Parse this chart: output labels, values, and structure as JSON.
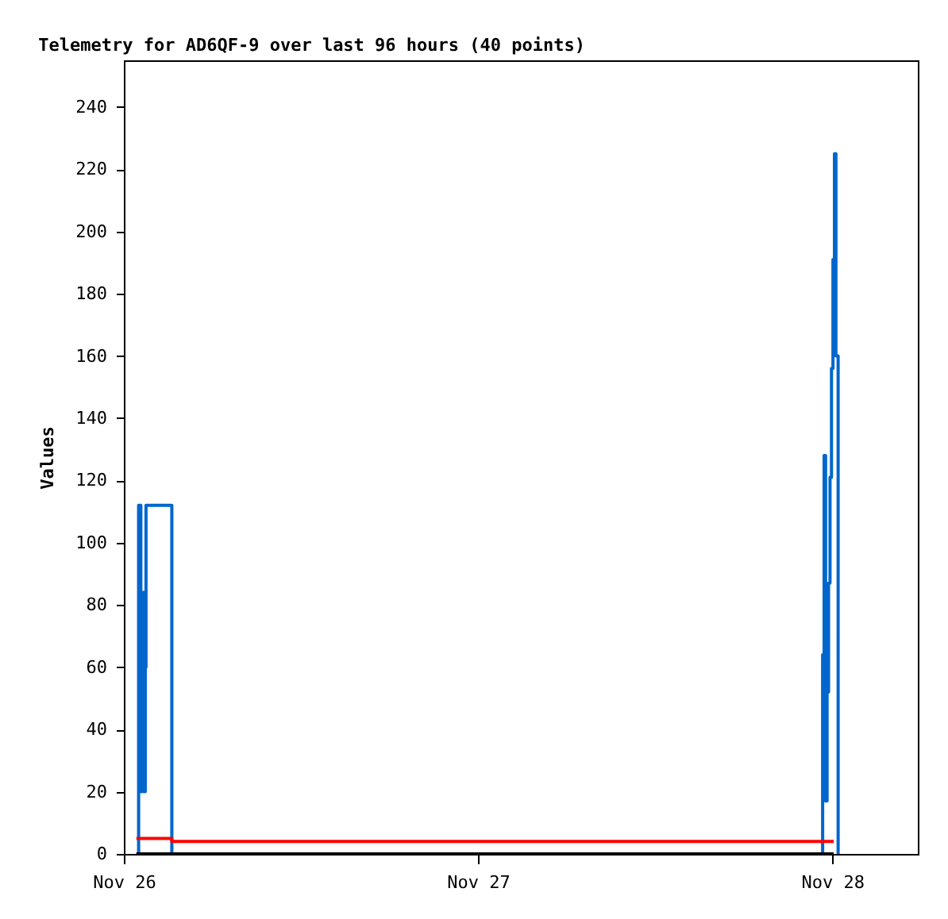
{
  "chart_data": {
    "type": "step",
    "title": "Telemetry for AD6QF-9 over last 96 hours (40 points)",
    "ylabel": "Values",
    "xlim": [
      "--11-26T00:00",
      "--11-28T05:48"
    ],
    "xticks": [
      {
        "value": "--11-26",
        "label": "Nov 26"
      },
      {
        "value": "--11-27",
        "label": "Nov 27"
      },
      {
        "value": "--11-28",
        "label": "Nov 28"
      }
    ],
    "ylim": [
      0,
      255
    ],
    "yticks": [
      0,
      20,
      40,
      60,
      80,
      100,
      120,
      140,
      160,
      180,
      200,
      220,
      240
    ],
    "grid": false,
    "marker": "none",
    "line_style": "solid",
    "series": [
      {
        "color": "#0066cc",
        "x": [
          "--11-26T00:51",
          "--11-26T01:00",
          "--11-26T01:09",
          "--11-26T01:15",
          "--11-26T01:21",
          "--11-26T01:27",
          "--11-26T01:30",
          "--11-26T03:15",
          "--11-27T23:18",
          "--11-27T23:21",
          "--11-27T23:27",
          "--11-27T23:33",
          "--11-27T23:39",
          "--11-27T23:45",
          "--11-27T23:51",
          "--11-27T23:57",
          "--11-28T00:03",
          "--11-28T00:09",
          "--11-28T00:15",
          "--11-28T00:24"
        ],
        "values": [
          0,
          112,
          20,
          84,
          20,
          60,
          112,
          0,
          0,
          64,
          128,
          17,
          52,
          87,
          121,
          156,
          191,
          225,
          160,
          0
        ]
      },
      {
        "color": "#ff0000",
        "x": [
          "--11-26T00:51",
          "--11-26T03:15",
          "--11-28T00:06"
        ],
        "values": [
          5,
          4,
          4
        ]
      },
      {
        "color": "#000000",
        "x": [
          "--11-26T00:51",
          "--11-28T00:06"
        ],
        "values": [
          0,
          0
        ]
      }
    ]
  }
}
